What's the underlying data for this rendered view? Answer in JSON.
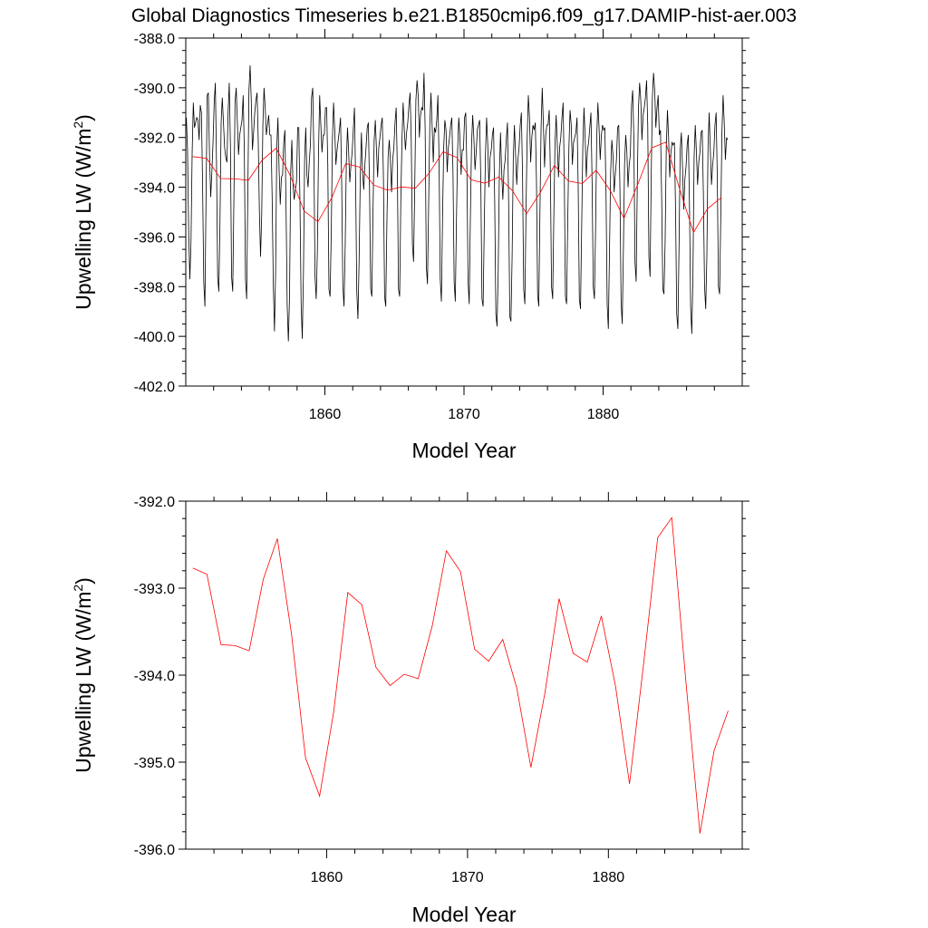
{
  "title": "Global Diagnostics Timeseries b.e21.B1850cmip6.f09_g17.DAMIP-hist-aer.003",
  "chart_data": [
    {
      "type": "line",
      "xlabel": "Model Year",
      "ylabel": "Upwelling LW (W/m",
      "ylabel_sup": "2",
      "ylabel_close": ")",
      "xlim": [
        1850,
        1890
      ],
      "ylim": [
        -402.0,
        -388.0
      ],
      "x_ticks": [
        "1860",
        "1870",
        "1880"
      ],
      "y_ticks": [
        "-402.0",
        "-400.0",
        "-398.0",
        "-396.0",
        "-394.0",
        "-392.0",
        "-390.0",
        "-388.0"
      ],
      "grid": false,
      "series": [
        {
          "color": "#000000",
          "monthly_values": [
            -391.2,
            -392.5,
            -395.8,
            -397.7,
            -396.2,
            -392.6,
            -390.6,
            -391.6,
            -391.4,
            -391.2,
            -391.3,
            -392.1,
            -390.7,
            -391.0,
            -393.9,
            -397.8,
            -398.8,
            -394.3,
            -390.3,
            -390.2,
            -392.8,
            -394.4,
            -393.4,
            -392.2,
            -390.6,
            -389.8,
            -393.0,
            -397.6,
            -398.2,
            -395.4,
            -391.4,
            -390.4,
            -391.4,
            -392.4,
            -392.8,
            -393.0,
            -391.0,
            -389.8,
            -392.3,
            -397.6,
            -398.2,
            -394.5,
            -390.6,
            -390.0,
            -391.4,
            -392.7,
            -391.9,
            -391.6,
            -391.3,
            -390.3,
            -392.5,
            -397.7,
            -398.5,
            -394.3,
            -390.1,
            -389.1,
            -390.5,
            -392.5,
            -391.8,
            -391.0,
            -390.5,
            -390.2,
            -392.1,
            -395.0,
            -396.8,
            -395.1,
            -391.5,
            -390.0,
            -390.8,
            -391.9,
            -391.5,
            -391.1,
            -391.9,
            -391.9,
            -394.4,
            -397.9,
            -399.8,
            -397.4,
            -392.4,
            -391.2,
            -393.3,
            -394.7,
            -393.6,
            -393.5,
            -392.2,
            -391.7,
            -394.8,
            -398.8,
            -400.2,
            -398.4,
            -393.4,
            -392.1,
            -393.9,
            -394.5,
            -394.1,
            -393.8,
            -391.6,
            -391.6,
            -394.6,
            -398.7,
            -400.1,
            -397.5,
            -392.9,
            -391.6,
            -393.5,
            -394.0,
            -393.0,
            -392.3,
            -390.4,
            -390.0,
            -392.7,
            -397.6,
            -398.5,
            -396.6,
            -392.6,
            -390.3,
            -391.5,
            -392.6,
            -391.9,
            -391.9,
            -390.8,
            -390.8,
            -393.1,
            -398.1,
            -398.4,
            -395.8,
            -392.1,
            -390.6,
            -391.7,
            -393.1,
            -392.5,
            -392.1,
            -391.7,
            -391.2,
            -393.9,
            -398.0,
            -398.8,
            -396.4,
            -393.0,
            -391.6,
            -392.6,
            -393.8,
            -393.1,
            -392.6,
            -391.7,
            -390.8,
            -393.7,
            -398.2,
            -399.3,
            -397.0,
            -393.7,
            -391.8,
            -393.4,
            -394.1,
            -393.1,
            -392.4,
            -391.6,
            -391.4,
            -394.0,
            -398.1,
            -398.4,
            -395.0,
            -392.1,
            -391.3,
            -392.5,
            -393.6,
            -392.4,
            -392.0,
            -391.5,
            -391.2,
            -393.6,
            -398.4,
            -398.8,
            -395.4,
            -392.8,
            -392.1,
            -392.9,
            -394.2,
            -392.9,
            -392.4,
            -391.4,
            -390.8,
            -393.3,
            -398.1,
            -398.4,
            -394.5,
            -392.1,
            -390.6,
            -391.7,
            -392.5,
            -391.8,
            -391.4,
            -390.7,
            -390.2,
            -392.1,
            -396.3,
            -397.0,
            -394.0,
            -390.5,
            -389.7,
            -390.3,
            -392.0,
            -391.1,
            -390.8,
            -390.9,
            -389.4,
            -391.7,
            -397.2,
            -397.9,
            -394.7,
            -391.5,
            -390.2,
            -391.5,
            -393.0,
            -391.6,
            -391.8,
            -391.3,
            -390.3,
            -393.0,
            -397.7,
            -398.6,
            -395.2,
            -392.4,
            -391.3,
            -391.7,
            -393.4,
            -392.4,
            -392.0,
            -391.5,
            -391.2,
            -393.4,
            -397.8,
            -398.6,
            -395.3,
            -392.5,
            -391.2,
            -392.0,
            -393.5,
            -392.5,
            -392.5,
            -391.2,
            -391.0,
            -393.3,
            -397.8,
            -398.7,
            -395.2,
            -392.3,
            -391.1,
            -392.0,
            -393.3,
            -392.6,
            -391.7,
            -391.5,
            -391.3,
            -393.8,
            -398.5,
            -398.8,
            -395.5,
            -392.7,
            -391.2,
            -392.3,
            -394.0,
            -392.8,
            -392.5,
            -391.9,
            -391.6,
            -394.6,
            -399.1,
            -399.6,
            -397.4,
            -393.5,
            -391.8,
            -393.4,
            -394.5,
            -393.3,
            -392.9,
            -392.1,
            -391.4,
            -394.6,
            -399.2,
            -399.4,
            -396.8,
            -392.9,
            -391.5,
            -392.7,
            -393.9,
            -392.9,
            -392.4,
            -391.5,
            -391.0,
            -393.5,
            -398.1,
            -398.7,
            -394.9,
            -392.0,
            -390.3,
            -391.2,
            -393.0,
            -392.0,
            -391.5,
            -391.7,
            -391.4,
            -393.7,
            -398.3,
            -398.8,
            -395.0,
            -391.6,
            -390.0,
            -391.5,
            -393.2,
            -391.9,
            -391.5,
            -391.5,
            -390.9,
            -393.4,
            -398.0,
            -398.5,
            -395.1,
            -392.3,
            -391.1,
            -392.3,
            -393.6,
            -392.4,
            -392.0,
            -391.2,
            -390.6,
            -393.5,
            -398.4,
            -398.7,
            -395.3,
            -392.4,
            -390.9,
            -391.5,
            -393.1,
            -392.2,
            -392.0,
            -391.8,
            -391.2,
            -394.0,
            -398.5,
            -398.9,
            -395.6,
            -392.4,
            -390.8,
            -392.0,
            -393.6,
            -392.5,
            -392.2,
            -391.6,
            -391.0,
            -393.8,
            -398.0,
            -398.5,
            -395.7,
            -392.0,
            -390.6,
            -391.6,
            -392.9,
            -391.9,
            -391.5,
            -391.7,
            -391.6,
            -394.2,
            -398.7,
            -399.7,
            -396.6,
            -393.4,
            -392.1,
            -392.7,
            -394.2,
            -393.5,
            -392.9,
            -391.6,
            -391.5,
            -394.0,
            -398.6,
            -399.5,
            -396.5,
            -393.1,
            -391.9,
            -392.6,
            -394.0,
            -393.1,
            -392.7,
            -390.7,
            -390.1,
            -392.0,
            -397.0,
            -397.8,
            -393.8,
            -390.8,
            -389.8,
            -390.5,
            -392.1,
            -391.1,
            -390.8,
            -390.4,
            -389.7,
            -391.5,
            -396.8,
            -397.6,
            -393.6,
            -390.4,
            -389.4,
            -390.1,
            -391.6,
            -390.8,
            -390.3,
            -391.9,
            -391.7,
            -394.4,
            -398.1,
            -398.3,
            -396.2,
            -392.4,
            -390.9,
            -392.0,
            -393.6,
            -392.6,
            -392.2,
            -392.3,
            -392.2,
            -394.9,
            -399.1,
            -399.7,
            -396.4,
            -392.5,
            -391.8,
            -393.2,
            -394.9,
            -393.7,
            -393.2,
            -392.3,
            -391.9,
            -394.7,
            -398.8,
            -399.9,
            -397.5,
            -392.8,
            -391.5,
            -392.6,
            -393.9,
            -393.0,
            -392.6,
            -391.8,
            -391.7,
            -394.3,
            -398.0,
            -398.9,
            -396.8,
            -392.4,
            -391.0,
            -392.5,
            -393.9,
            -393.1,
            -392.6,
            -391.5,
            -391.0,
            -393.6,
            -398.0,
            -398.3,
            -395.2,
            -391.8,
            -390.3,
            -391.4,
            -392.9,
            -392.0,
            -392.1
          ]
        },
        {
          "color": "#ff0000",
          "values": [
            -392.77,
            -392.84,
            -393.65,
            -393.66,
            -393.72,
            -392.9,
            -392.43,
            -393.52,
            -394.95,
            -395.39,
            -394.42,
            -393.05,
            -393.19,
            -393.91,
            -394.12,
            -393.99,
            -394.04,
            -393.43,
            -392.57,
            -392.81,
            -393.7,
            -393.84,
            -393.59,
            -394.15,
            -395.06,
            -394.2,
            -393.12,
            -393.75,
            -393.85,
            -393.32,
            -394.12,
            -395.25,
            -393.87,
            -392.42,
            -392.19,
            -394.07,
            -395.82,
            -394.87,
            -394.41
          ]
        }
      ]
    },
    {
      "type": "line",
      "xlabel": "Model Year",
      "ylabel": "Upwelling LW (W/m",
      "ylabel_sup": "2",
      "ylabel_close": ")",
      "xlim": [
        1850,
        1889.5
      ],
      "ylim": [
        -396.0,
        -392.0
      ],
      "x_ticks": [
        "1860",
        "1870",
        "1880"
      ],
      "y_ticks": [
        "-396.0",
        "-395.0",
        "-394.0",
        "-393.0",
        "-392.0"
      ],
      "grid": false,
      "series": [
        {
          "color": "#ff0000",
          "values": [
            -392.77,
            -392.84,
            -393.65,
            -393.66,
            -393.72,
            -392.9,
            -392.43,
            -393.52,
            -394.95,
            -395.39,
            -394.42,
            -393.05,
            -393.19,
            -393.91,
            -394.12,
            -393.99,
            -394.04,
            -393.43,
            -392.57,
            -392.81,
            -393.7,
            -393.84,
            -393.59,
            -394.15,
            -395.06,
            -394.2,
            -393.12,
            -393.75,
            -393.85,
            -393.32,
            -394.12,
            -395.25,
            -393.87,
            -392.42,
            -392.19,
            -394.07,
            -395.82,
            -394.87,
            -394.41
          ]
        }
      ]
    }
  ]
}
